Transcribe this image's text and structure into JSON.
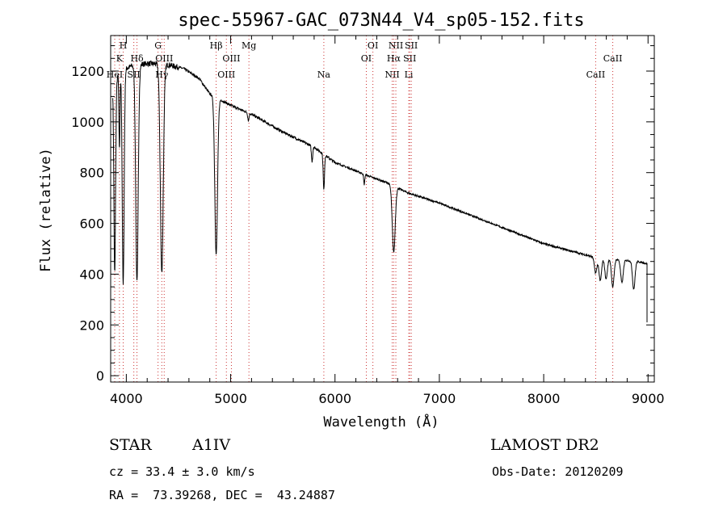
{
  "chart_data": {
    "type": "line",
    "title": "spec-55967-GAC_073N44_V4_sp05-152.fits",
    "xlabel": "Wavelength (Å)",
    "ylabel": "Flux (relative)",
    "xlim": [
      3850,
      9060
    ],
    "ylim": [
      -25,
      1340
    ],
    "xticks": [
      4000,
      5000,
      6000,
      7000,
      8000,
      9000
    ],
    "yticks": [
      0,
      200,
      400,
      600,
      800,
      1000,
      1200
    ],
    "grid": false,
    "series": [
      {
        "color": "#000000",
        "continuum": {
          "x": [
            3870,
            3950,
            4050,
            4200,
            4400,
            4550,
            4700,
            4800,
            5000,
            5200,
            5500,
            5800,
            6000,
            6300,
            6500,
            6700,
            7000,
            7500,
            8000,
            8500,
            8900,
            9000
          ],
          "y": [
            1150,
            1200,
            1220,
            1230,
            1225,
            1210,
            1170,
            1110,
            1065,
            1030,
            960,
            900,
            840,
            790,
            760,
            720,
            680,
            600,
            520,
            465,
            450,
            440
          ]
        },
        "absorption_lines": [
          {
            "center": 3889,
            "depth": 760,
            "width": 8
          },
          {
            "center": 3934,
            "depth": 300,
            "width": 5
          },
          {
            "center": 3970,
            "depth": 850,
            "width": 9
          },
          {
            "center": 4102,
            "depth": 850,
            "width": 12
          },
          {
            "center": 4340,
            "depth": 820,
            "width": 14
          },
          {
            "center": 4861,
            "depth": 620,
            "width": 13
          },
          {
            "center": 5170,
            "depth": 30,
            "width": 6
          },
          {
            "center": 5780,
            "depth": 60,
            "width": 6
          },
          {
            "center": 5893,
            "depth": 140,
            "width": 6
          },
          {
            "center": 6280,
            "depth": 40,
            "width": 5
          },
          {
            "center": 6563,
            "depth": 260,
            "width": 14
          },
          {
            "center": 8498,
            "depth": 60,
            "width": 12
          },
          {
            "center": 8542,
            "depth": 90,
            "width": 12
          },
          {
            "center": 8598,
            "depth": 80,
            "width": 12
          },
          {
            "center": 8662,
            "depth": 110,
            "width": 12
          },
          {
            "center": 8750,
            "depth": 90,
            "width": 12
          },
          {
            "center": 8863,
            "depth": 110,
            "width": 12
          }
        ],
        "end_drop": {
          "x": 8990,
          "y": 210
        }
      }
    ],
    "line_markers": [
      {
        "wavelength": 3889,
        "label": "HeI",
        "row": 2
      },
      {
        "wavelength": 3934,
        "label": "K",
        "row": 1
      },
      {
        "wavelength": 3970,
        "label": "H",
        "row": 0
      },
      {
        "wavelength": 4072,
        "label": "SII",
        "row": 2
      },
      {
        "wavelength": 4102,
        "label": "Hδ",
        "row": 1
      },
      {
        "wavelength": 4304,
        "label": "G",
        "row": 0
      },
      {
        "wavelength": 4340,
        "label": "Hγ",
        "row": 2
      },
      {
        "wavelength": 4363,
        "label": "OIII",
        "row": 1
      },
      {
        "wavelength": 4861,
        "label": "Hβ",
        "row": 0
      },
      {
        "wavelength": 4959,
        "label": "OIII",
        "row": 2
      },
      {
        "wavelength": 5007,
        "label": "OIII",
        "row": 1
      },
      {
        "wavelength": 5175,
        "label": "Mg",
        "row": 0
      },
      {
        "wavelength": 5893,
        "label": "Na",
        "row": 2
      },
      {
        "wavelength": 6300,
        "label": "OI",
        "row": 1
      },
      {
        "wavelength": 6363,
        "label": "OI",
        "row": 0
      },
      {
        "wavelength": 6548,
        "label": "NII",
        "row": 2
      },
      {
        "wavelength": 6563,
        "label": "Hα",
        "row": 1
      },
      {
        "wavelength": 6583,
        "label": "NII",
        "row": 0
      },
      {
        "wavelength": 6707,
        "label": "Li",
        "row": 2
      },
      {
        "wavelength": 6716,
        "label": "SII",
        "row": 1
      },
      {
        "wavelength": 6731,
        "label": "SII",
        "row": 0
      },
      {
        "wavelength": 8498,
        "label": "CaII",
        "row": 2
      },
      {
        "wavelength": 8662,
        "label": "CaII",
        "row": 1
      }
    ],
    "marker_color": "#cc3333"
  },
  "info": {
    "object_class": "STAR",
    "subclass": "A1IV",
    "survey": "LAMOST DR2",
    "cz": "cz = 33.4 ± 3.0 km/s",
    "obs_date": "Obs-Date: 20120209",
    "coords": "RA =  73.39268, DEC =  43.24887"
  }
}
